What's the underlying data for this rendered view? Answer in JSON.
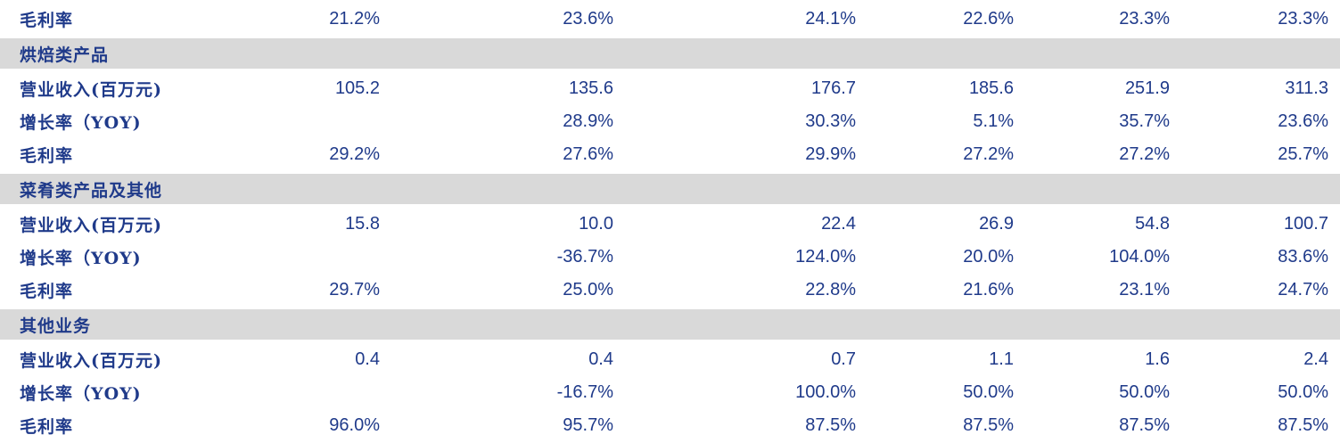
{
  "rows": [
    {
      "type": "data",
      "label": "毛利率",
      "values": [
        "21.2%",
        "23.6%",
        "24.1%",
        "22.6%",
        "23.3%",
        "23.3%"
      ]
    },
    {
      "type": "section",
      "label": "烘焙类产品"
    },
    {
      "type": "data",
      "label": "营业收入(百万元)",
      "values": [
        "105.2",
        "135.6",
        "176.7",
        "185.6",
        "251.9",
        "311.3"
      ]
    },
    {
      "type": "data",
      "label": "增长率（YOY)",
      "values": [
        "",
        "28.9%",
        "30.3%",
        "5.1%",
        "35.7%",
        "23.6%"
      ]
    },
    {
      "type": "data",
      "label": "毛利率",
      "values": [
        "29.2%",
        "27.6%",
        "29.9%",
        "27.2%",
        "27.2%",
        "25.7%"
      ]
    },
    {
      "type": "section",
      "label": "菜肴类产品及其他"
    },
    {
      "type": "data",
      "label": "营业收入(百万元)",
      "values": [
        "15.8",
        "10.0",
        "22.4",
        "26.9",
        "54.8",
        "100.7"
      ]
    },
    {
      "type": "data",
      "label": "增长率（YOY)",
      "values": [
        "",
        "-36.7%",
        "124.0%",
        "20.0%",
        "104.0%",
        "83.6%"
      ]
    },
    {
      "type": "data",
      "label": "毛利率",
      "values": [
        "29.7%",
        "25.0%",
        "22.8%",
        "21.6%",
        "23.1%",
        "24.7%"
      ]
    },
    {
      "type": "section",
      "label": "其他业务"
    },
    {
      "type": "data",
      "label": "营业收入(百万元)",
      "values": [
        "0.4",
        "0.4",
        "0.7",
        "1.1",
        "1.6",
        "2.4"
      ]
    },
    {
      "type": "data",
      "label": "增长率（YOY)",
      "values": [
        "",
        "-16.7%",
        "100.0%",
        "50.0%",
        "50.0%",
        "50.0%"
      ]
    },
    {
      "type": "data",
      "label": "毛利率",
      "values": [
        "96.0%",
        "95.7%",
        "87.5%",
        "87.5%",
        "87.5%",
        "87.5%"
      ]
    }
  ]
}
